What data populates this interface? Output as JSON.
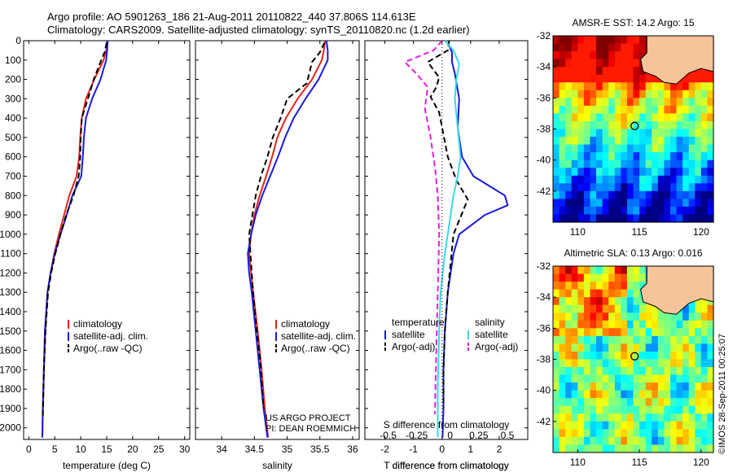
{
  "header": {
    "line1": "Argo profile: AO 5901263_186 21-Aug-2011 20110822_440 37.806S 114.613E",
    "line2": "Climatology: CARS2009. Satellite-adjusted climatology: synTS_20110820.nc (1.2d earlier)"
  },
  "stamp": "©IMOS 28-Sep-2011 00:25:07",
  "colors": {
    "climatology": "#e8231c",
    "satellite": "#1a1adc",
    "argo": "#000000",
    "sat_salinity": "#38d8e8",
    "argo_salinity": "#e020e0",
    "land": "#f6c49a"
  },
  "chart_data": [
    {
      "type": "line",
      "id": "temperature",
      "xlabel": "temperature (deg C)",
      "xlim": [
        -1,
        31
      ],
      "ylim": [
        2060,
        0
      ],
      "xticks": [
        0,
        5,
        10,
        15,
        20,
        25,
        30
      ],
      "yticks": [
        0,
        100,
        200,
        300,
        400,
        500,
        600,
        700,
        800,
        900,
        1000,
        1100,
        1200,
        1300,
        1400,
        1500,
        1600,
        1700,
        1800,
        1900,
        2000
      ],
      "legend": {
        "placement": "lower-middle",
        "entries": [
          "climatology",
          "satellite-adj. clim.",
          "Argo(..raw -QC)"
        ]
      },
      "series": [
        {
          "name": "climatology",
          "style": "solid",
          "x": [
            15.2,
            14.9,
            14.4,
            12.6,
            11.0,
            10.2,
            9.9,
            9.7,
            9.2,
            7.8,
            6.8,
            5.8,
            4.9,
            4.2,
            3.6,
            3.2,
            2.9,
            2.7,
            2.6
          ],
          "y": [
            0,
            50,
            100,
            200,
            300,
            400,
            500,
            600,
            700,
            800,
            900,
            1000,
            1100,
            1200,
            1300,
            1500,
            1700,
            1900,
            2050
          ]
        },
        {
          "name": "satellite-adj. clim.",
          "style": "solid",
          "x": [
            15.2,
            15.1,
            14.9,
            13.8,
            12.2,
            11.0,
            10.6,
            10.4,
            10.1,
            8.4,
            7.3,
            6.1,
            5.0,
            4.2,
            3.6,
            3.1,
            2.9,
            2.7,
            2.6
          ],
          "y": [
            0,
            50,
            100,
            200,
            300,
            400,
            500,
            600,
            700,
            800,
            900,
            1000,
            1100,
            1200,
            1300,
            1500,
            1700,
            1900,
            2050
          ]
        },
        {
          "name": "Argo(..raw -QC)",
          "style": "dashed",
          "x": [
            15.0,
            14.6,
            13.8,
            12.5,
            11.5,
            10.2,
            10.0,
            9.9,
            9.6,
            8.6,
            7.2,
            6.1,
            5.1,
            4.3,
            3.7,
            3.2,
            2.9,
            2.7
          ],
          "y": [
            10,
            60,
            110,
            200,
            290,
            400,
            500,
            600,
            700,
            800,
            900,
            1000,
            1100,
            1200,
            1300,
            1500,
            1700,
            1950
          ]
        }
      ]
    },
    {
      "type": "line",
      "id": "salinity",
      "xlabel": "salinity",
      "xlim": [
        33.6,
        36.1
      ],
      "ylim": [
        2060,
        0
      ],
      "xticks": [
        34,
        34.5,
        35,
        35.5,
        36
      ],
      "legend": {
        "placement": "lower-right",
        "entries": [
          "climatology",
          "satellite-adj. clim.",
          "Argo(..raw -QC)"
        ]
      },
      "annotation": [
        "US ARGO PROJECT",
        "PI: DEAN ROEMMICH"
      ],
      "series": [
        {
          "name": "climatology",
          "style": "solid",
          "x": [
            35.58,
            35.56,
            35.53,
            35.38,
            35.16,
            34.98,
            34.85,
            34.77,
            34.68,
            34.58,
            34.5,
            34.45,
            34.42,
            34.45,
            34.48,
            34.55,
            34.61,
            34.66,
            34.71
          ],
          "y": [
            0,
            50,
            100,
            200,
            300,
            400,
            500,
            600,
            700,
            800,
            900,
            1000,
            1100,
            1200,
            1300,
            1500,
            1700,
            1900,
            2050
          ]
        },
        {
          "name": "satellite-adj. clim.",
          "style": "solid",
          "x": [
            35.6,
            35.62,
            35.62,
            35.48,
            35.28,
            35.1,
            34.97,
            34.86,
            34.74,
            34.62,
            34.52,
            34.45,
            34.4,
            34.42,
            34.46,
            34.52,
            34.58,
            34.64,
            34.7
          ],
          "y": [
            0,
            50,
            100,
            200,
            300,
            400,
            500,
            600,
            700,
            800,
            900,
            1000,
            1100,
            1200,
            1300,
            1500,
            1700,
            1900,
            2050
          ]
        },
        {
          "name": "Argo(..raw -QC)",
          "style": "dashed",
          "x": [
            35.57,
            35.5,
            35.38,
            35.3,
            35.0,
            34.9,
            34.78,
            34.7,
            34.6,
            34.52,
            34.47,
            34.42,
            34.44,
            34.47,
            34.52,
            34.59,
            34.64
          ],
          "y": [
            10,
            60,
            110,
            220,
            300,
            400,
            500,
            600,
            700,
            800,
            900,
            1000,
            1100,
            1250,
            1450,
            1650,
            1900
          ]
        }
      ]
    },
    {
      "type": "line",
      "id": "difference",
      "xlabel": "T difference from climatology",
      "xlabel2": "S difference from climatology",
      "xlim": [
        -2.7,
        3.0
      ],
      "ylim": [
        2060,
        0
      ],
      "xticks": [
        -2,
        -1,
        0,
        1,
        2
      ],
      "xticks2": {
        "labels": [
          "-0.5",
          "-0.25",
          "0",
          "0.25",
          "0.5"
        ],
        "positions": [
          -2,
          -1,
          0,
          1,
          2
        ]
      },
      "legend": {
        "placement": "lower-center",
        "temperature_title": "temperature",
        "salinity_title": "salinity",
        "entries": [
          "satellite",
          "Argo(-adj)",
          "satellite",
          "Argo(-adj)"
        ]
      },
      "series": [
        {
          "name": "temperature satellite",
          "group": "temperature",
          "style": "solid",
          "x": [
            0.2,
            0.35,
            0.35,
            0.45,
            0.6,
            0.55,
            0.7,
            1.1,
            2.2,
            2.3,
            1.5,
            0.6,
            0.4,
            0.2,
            0.1,
            0.05,
            0.05,
            0.02
          ],
          "y": [
            10,
            60,
            110,
            170,
            300,
            450,
            600,
            700,
            800,
            850,
            900,
            1000,
            1100,
            1300,
            1500,
            1700,
            1900,
            2050
          ]
        },
        {
          "name": "temperature Argo(-adj)",
          "group": "temperature",
          "style": "dashed",
          "x": [
            0.25,
            0.2,
            -0.5,
            -0.1,
            -0.2,
            -0.4,
            -0.1,
            0.2,
            0.5,
            0.9,
            0.4,
            0.3,
            0.2,
            0.1,
            0.05,
            0.05
          ],
          "y": [
            0,
            50,
            110,
            190,
            240,
            290,
            370,
            600,
            720,
            820,
            1000,
            1150,
            1300,
            1500,
            1700,
            1900
          ]
        },
        {
          "name": "salinity satellite",
          "group": "salinity",
          "style": "solid",
          "x": [
            0.1,
            0.4,
            0.6,
            0.5,
            0.45,
            0.55,
            0.65,
            0.55,
            0.4,
            0.3,
            0.1,
            -0.05,
            -0.1,
            -0.15,
            -0.15
          ],
          "y": [
            0,
            50,
            120,
            200,
            300,
            450,
            600,
            700,
            800,
            900,
            1100,
            1300,
            1500,
            1800,
            2050
          ]
        },
        {
          "name": "salinity Argo(-adj)",
          "group": "salinity",
          "style": "dashed",
          "x": [
            0.0,
            -0.3,
            -1.3,
            -0.9,
            -0.5,
            -0.6,
            -0.4,
            -0.25,
            -0.15,
            -0.1,
            -0.15,
            -0.2,
            -0.25
          ],
          "y": [
            0,
            50,
            110,
            170,
            240,
            350,
            500,
            650,
            800,
            1000,
            1300,
            1600,
            1930
          ]
        }
      ]
    },
    {
      "type": "heatmap",
      "id": "sst-map",
      "title": "AMSR-E SST: 14.2 Argo: 15",
      "xlim": [
        108,
        121
      ],
      "ylim": [
        -44,
        -32
      ],
      "xticks": [
        110,
        115,
        120
      ],
      "yticks": [
        -32,
        -34,
        -36,
        -38,
        -40,
        -42
      ],
      "marker": {
        "lon": 114.613,
        "lat": -37.806
      }
    },
    {
      "type": "heatmap",
      "id": "sla-map",
      "title": "Altimetric SLA: 0.13 Argo: 0.016",
      "xlim": [
        108,
        121
      ],
      "ylim": [
        -44,
        -32
      ],
      "xticks": [
        110,
        115,
        120
      ],
      "yticks": [
        -32,
        -34,
        -36,
        -38,
        -40,
        -42
      ],
      "marker": {
        "lon": 114.613,
        "lat": -37.806
      }
    }
  ]
}
